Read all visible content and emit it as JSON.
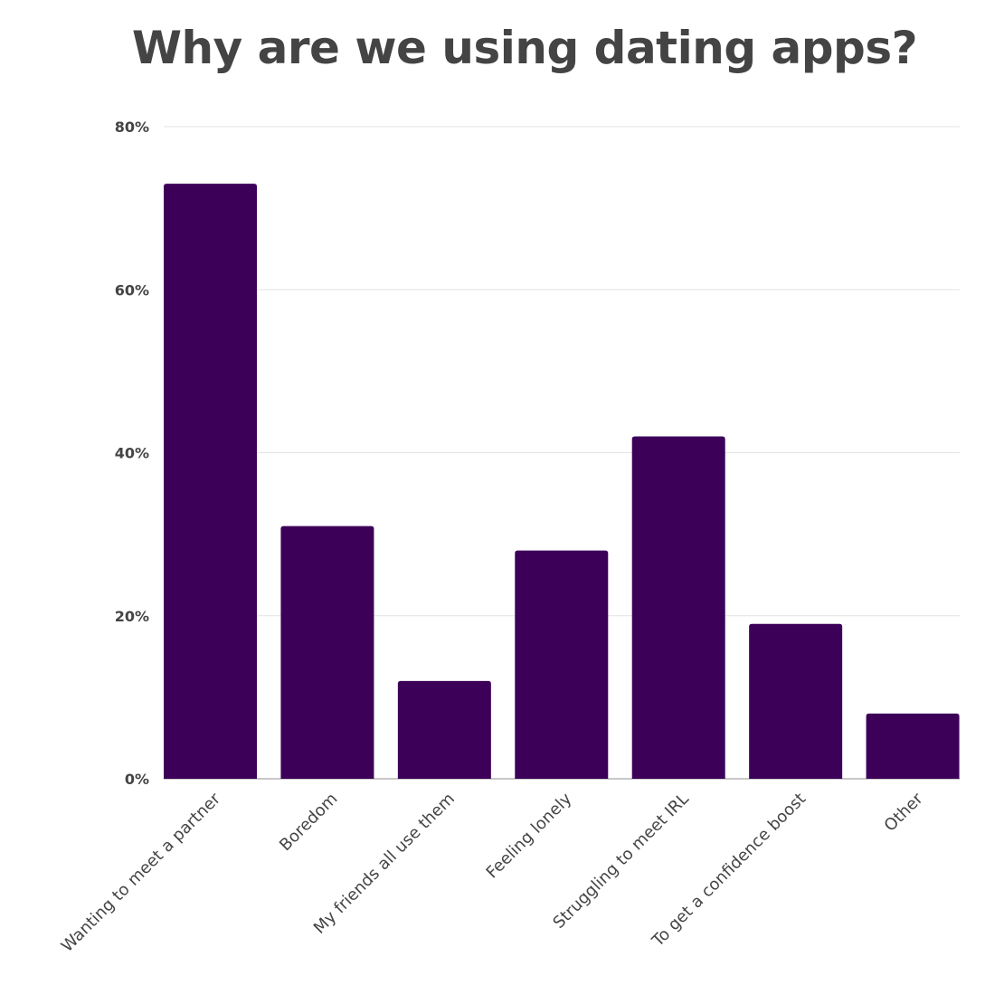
{
  "chart_data": {
    "type": "bar",
    "title": "Why are we using dating apps?",
    "xlabel": "",
    "ylabel": "",
    "categories": [
      "Wanting to meet a partner",
      "Boredom",
      "My friends all use them",
      "Feeling lonely",
      "Struggling to meet IRL",
      "To get a confidence boost",
      "Other"
    ],
    "values": [
      73,
      31,
      12,
      28,
      42,
      19,
      8
    ],
    "ylim": [
      0,
      80
    ],
    "yticks": [
      0,
      20,
      40,
      60,
      80
    ],
    "ytick_labels": [
      "0%",
      "20%",
      "40%",
      "60%",
      "80%"
    ],
    "grid": true,
    "legend": "none",
    "bar_color": "#3d0059"
  }
}
